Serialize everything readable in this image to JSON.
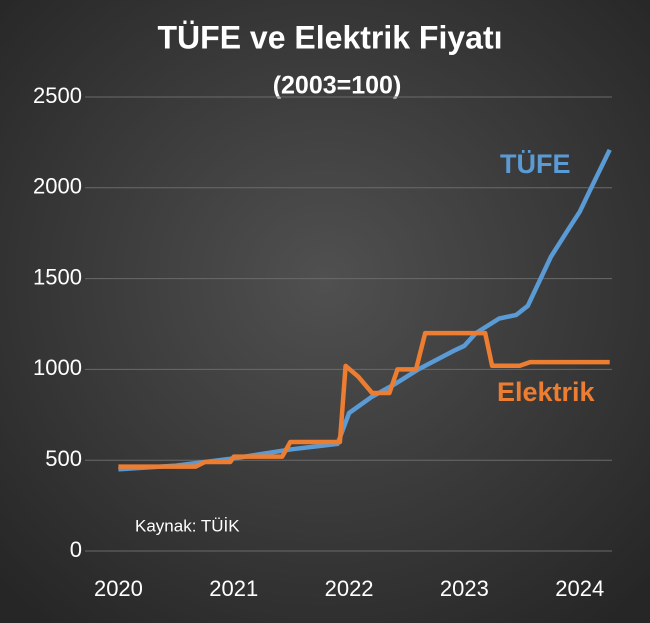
{
  "chart_data": {
    "type": "line",
    "title": "TÜFE ve Elektrik Fiyatı",
    "subtitle": "(2003=100)",
    "annotation": "Kaynak: TÜİK",
    "xlim": [
      2019.71,
      2024.28
    ],
    "xticks": [
      2020,
      2021,
      2022,
      2023,
      2024
    ],
    "ylim": [
      0,
      2500
    ],
    "yticks": [
      0,
      500,
      1000,
      1500,
      2000,
      2500
    ],
    "grid": true,
    "series": [
      {
        "name": "TÜFE",
        "color": "#5b9bd5",
        "x": [
          2020.0,
          2020.5,
          2021.0,
          2021.5,
          2021.9,
          2022.0,
          2022.2,
          2022.4,
          2022.6,
          2022.9,
          2023.0,
          2023.1,
          2023.3,
          2023.45,
          2023.55,
          2023.75,
          2023.91,
          2024.0,
          2024.1,
          2024.26
        ],
        "values": [
          450,
          470,
          510,
          560,
          590,
          760,
          850,
          920,
          1000,
          1100,
          1130,
          1200,
          1280,
          1300,
          1350,
          1620,
          1780,
          1868,
          2000,
          2209
        ]
      },
      {
        "name": "Elektrik",
        "color": "#ed7d31",
        "x": [
          2020.0,
          2020.67,
          2020.75,
          2020.97,
          2021.0,
          2021.42,
          2021.49,
          2021.92,
          2021.97,
          2022.08,
          2022.2,
          2022.35,
          2022.42,
          2022.58,
          2022.66,
          2023.18,
          2023.24,
          2023.48,
          2023.57,
          2024.26
        ],
        "values": [
          465,
          465,
          490,
          490,
          520,
          520,
          600,
          600,
          1019,
          960,
          870,
          870,
          1000,
          1000,
          1200,
          1200,
          1020,
          1020,
          1040,
          1040
        ]
      }
    ]
  }
}
